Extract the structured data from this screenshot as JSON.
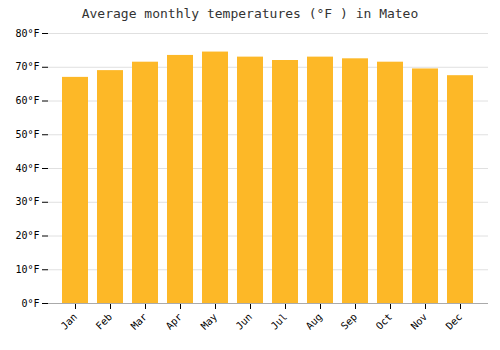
{
  "chart_data": {
    "type": "bar",
    "title": "Average monthly temperatures (°F ) in Mateo",
    "categories": [
      "Jan",
      "Feb",
      "Mar",
      "Apr",
      "May",
      "Jun",
      "Jul",
      "Aug",
      "Sep",
      "Oct",
      "Nov",
      "Dec"
    ],
    "values": [
      67.0,
      69.0,
      71.5,
      73.5,
      74.5,
      73.0,
      72.0,
      73.0,
      72.5,
      71.5,
      69.5,
      67.5
    ],
    "color": "#FDB827",
    "ylim": [
      0,
      80
    ],
    "yticks": [
      {
        "value": 0,
        "label": "0°F"
      },
      {
        "value": 10,
        "label": "10°F"
      },
      {
        "value": 20,
        "label": "20°F"
      },
      {
        "value": 30,
        "label": "30°F"
      },
      {
        "value": 40,
        "label": "40°F"
      },
      {
        "value": 50,
        "label": "50°F"
      },
      {
        "value": 60,
        "label": "60°F"
      },
      {
        "value": 70,
        "label": "70°F"
      },
      {
        "value": 80,
        "label": "80°F"
      }
    ],
    "grid": true
  }
}
